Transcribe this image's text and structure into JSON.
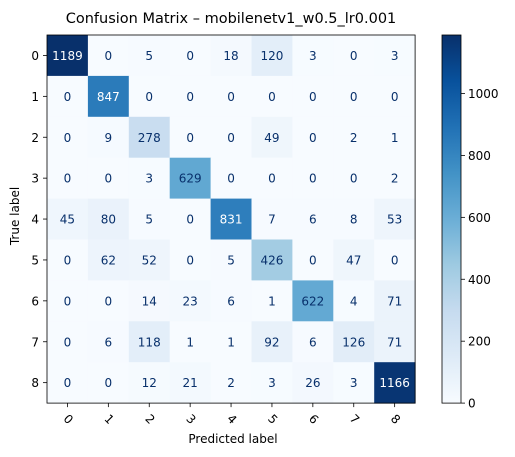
{
  "chart_data": {
    "type": "heatmap",
    "title": "Confusion Matrix – mobilenetv1_w0.5_lr0.001",
    "xlabel": "Predicted label",
    "ylabel": "True label",
    "x_categories": [
      "0",
      "1",
      "2",
      "3",
      "4",
      "5",
      "6",
      "7",
      "8"
    ],
    "y_categories": [
      "0",
      "1",
      "2",
      "3",
      "4",
      "5",
      "6",
      "7",
      "8"
    ],
    "matrix": [
      [
        1189,
        0,
        5,
        0,
        18,
        120,
        3,
        0,
        3
      ],
      [
        0,
        847,
        0,
        0,
        0,
        0,
        0,
        0,
        0
      ],
      [
        0,
        9,
        278,
        0,
        0,
        49,
        0,
        2,
        1
      ],
      [
        0,
        0,
        3,
        629,
        0,
        0,
        0,
        0,
        2
      ],
      [
        45,
        80,
        5,
        0,
        831,
        7,
        6,
        8,
        53
      ],
      [
        0,
        62,
        52,
        0,
        5,
        426,
        0,
        47,
        0
      ],
      [
        0,
        0,
        14,
        23,
        6,
        1,
        622,
        4,
        71
      ],
      [
        0,
        6,
        118,
        1,
        1,
        92,
        6,
        126,
        71
      ],
      [
        0,
        0,
        12,
        21,
        2,
        3,
        26,
        3,
        1166
      ]
    ],
    "colormap": "Blues",
    "colorbar": {
      "vmin": 0,
      "vmax": 1189,
      "ticks": [
        0,
        200,
        400,
        600,
        800,
        1000
      ]
    },
    "x_tick_rotation": "45deg",
    "grid": false
  }
}
